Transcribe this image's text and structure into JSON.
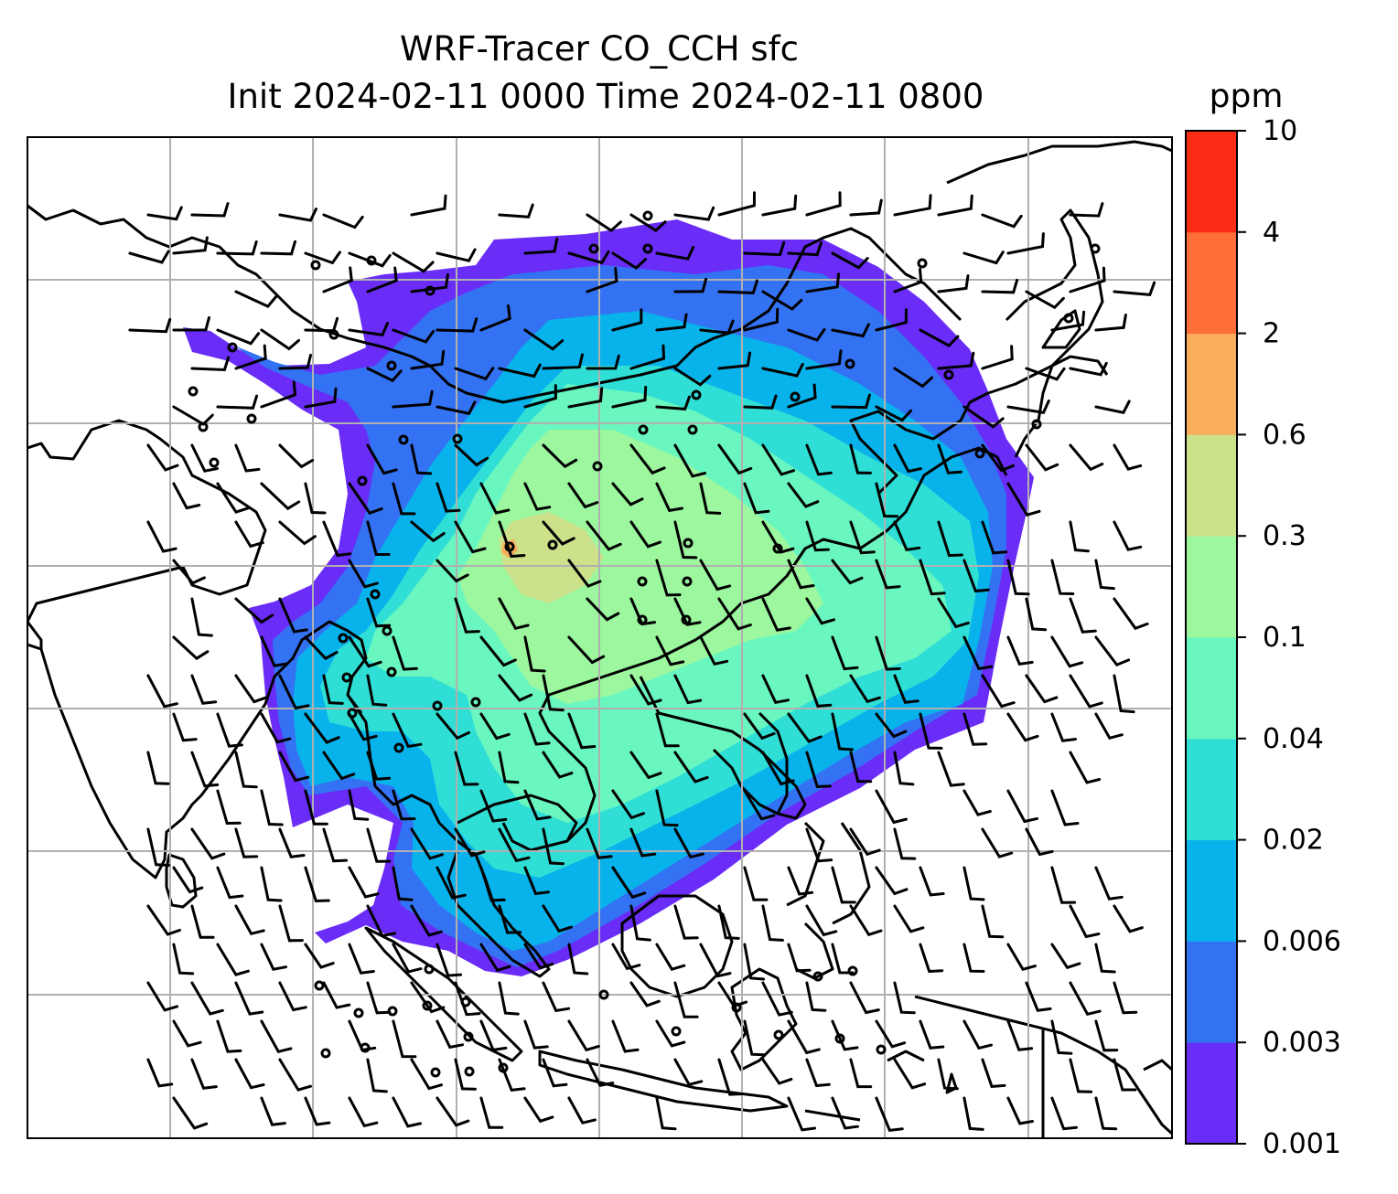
{
  "title": {
    "line1": "WRF-Tracer CO_CCH sfc",
    "line2": "Init 2024-02-11 0000 Time 2024-02-11 0800"
  },
  "colorbar": {
    "unit": "ppm",
    "ticks": [
      "0.001",
      "0.003",
      "0.006",
      "0.02",
      "0.04",
      "0.1",
      "0.3",
      "0.6",
      "2",
      "4",
      "10"
    ],
    "colors": [
      "#6a2cf7",
      "#3472f4",
      "#08b2ea",
      "#2fdfd6",
      "#6af7bf",
      "#9cf79f",
      "#cbe18a",
      "#f9ae5c",
      "#fd6e39",
      "#fb2c16"
    ]
  },
  "map": {
    "projection": "Mercator",
    "grid": true,
    "coastlines": true,
    "overlay": "wind barbs",
    "colors": {
      "land": "#ffffff",
      "coast": "#000000",
      "grid": "#b0b0b0",
      "barb": "#000000"
    }
  }
}
